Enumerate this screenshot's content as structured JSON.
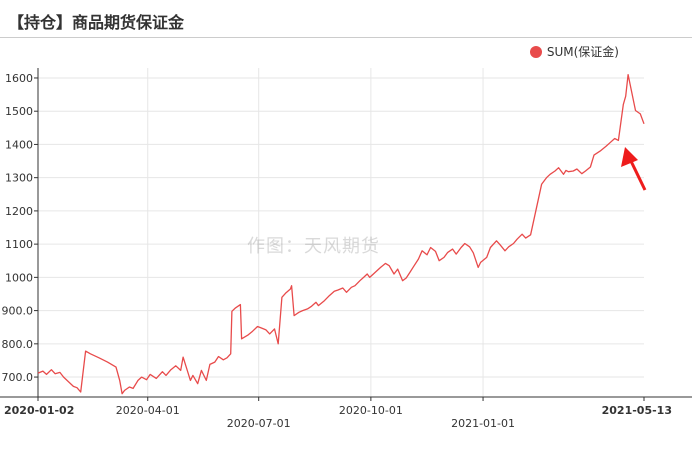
{
  "header": {
    "title": "【持仓】商品期货保证金"
  },
  "watermark": "作图：天风期货",
  "colors": {
    "series": "#e84b4b",
    "arrow": "#ee1c1c",
    "grid": "#e6e6e6",
    "axis": "#333333"
  },
  "chart_data": {
    "type": "line",
    "title": "",
    "xlabel": "",
    "ylabel": "",
    "grid": true,
    "legend_position": "top-right",
    "ylim": [
      640,
      1630
    ],
    "xlim": [
      "2020-01-02",
      "2021-05-13"
    ],
    "y_ticks": [
      {
        "value": 700,
        "label": "700.0"
      },
      {
        "value": 800,
        "label": "800.0"
      },
      {
        "value": 900,
        "label": "900.0"
      },
      {
        "value": 1000,
        "label": "1000"
      },
      {
        "value": 1100,
        "label": "1100"
      },
      {
        "value": 1200,
        "label": "1200"
      },
      {
        "value": 1300,
        "label": "1300"
      },
      {
        "value": 1400,
        "label": "1400"
      },
      {
        "value": 1500,
        "label": "1500"
      },
      {
        "value": 1600,
        "label": "1600"
      }
    ],
    "x_ticks": [
      {
        "date": "2020-01-02",
        "label": "2020-01-02",
        "row": 0,
        "bold": true
      },
      {
        "date": "2020-04-01",
        "label": "2020-04-01",
        "row": 0,
        "bold": false
      },
      {
        "date": "2020-07-01",
        "label": "2020-07-01",
        "row": 1,
        "bold": false
      },
      {
        "date": "2020-10-01",
        "label": "2020-10-01",
        "row": 0,
        "bold": false
      },
      {
        "date": "2021-01-01",
        "label": "2021-01-01",
        "row": 1,
        "bold": false
      },
      {
        "date": "2021-05-13",
        "label": "2021-05-13",
        "row": 0,
        "bold": true
      }
    ],
    "series": [
      {
        "name": "SUM(保证金)",
        "color": "#e84b4b",
        "points": [
          [
            "2020-01-02",
            712
          ],
          [
            "2020-01-06",
            718
          ],
          [
            "2020-01-09",
            708
          ],
          [
            "2020-01-13",
            722
          ],
          [
            "2020-01-16",
            710
          ],
          [
            "2020-01-20",
            714
          ],
          [
            "2020-01-23",
            700
          ],
          [
            "2020-01-31",
            672
          ],
          [
            "2020-02-03",
            668
          ],
          [
            "2020-02-06",
            655
          ],
          [
            "2020-02-10",
            778
          ],
          [
            "2020-02-14",
            770
          ],
          [
            "2020-02-21",
            758
          ],
          [
            "2020-02-28",
            745
          ],
          [
            "2020-03-06",
            730
          ],
          [
            "2020-03-09",
            690
          ],
          [
            "2020-03-11",
            650
          ],
          [
            "2020-03-13",
            660
          ],
          [
            "2020-03-17",
            670
          ],
          [
            "2020-03-20",
            666
          ],
          [
            "2020-03-24",
            690
          ],
          [
            "2020-03-27",
            700
          ],
          [
            "2020-03-31",
            692
          ],
          [
            "2020-04-03",
            708
          ],
          [
            "2020-04-08",
            696
          ],
          [
            "2020-04-13",
            716
          ],
          [
            "2020-04-16",
            705
          ],
          [
            "2020-04-20",
            722
          ],
          [
            "2020-04-24",
            734
          ],
          [
            "2020-04-28",
            720
          ],
          [
            "2020-04-30",
            760
          ],
          [
            "2020-05-06",
            690
          ],
          [
            "2020-05-08",
            705
          ],
          [
            "2020-05-12",
            680
          ],
          [
            "2020-05-15",
            720
          ],
          [
            "2020-05-19",
            690
          ],
          [
            "2020-05-22",
            738
          ],
          [
            "2020-05-26",
            745
          ],
          [
            "2020-05-29",
            762
          ],
          [
            "2020-06-02",
            752
          ],
          [
            "2020-06-05",
            758
          ],
          [
            "2020-06-08",
            770
          ],
          [
            "2020-06-09",
            898
          ],
          [
            "2020-06-12",
            908
          ],
          [
            "2020-06-16",
            918
          ],
          [
            "2020-06-17",
            815
          ],
          [
            "2020-06-22",
            826
          ],
          [
            "2020-06-26",
            838
          ],
          [
            "2020-06-30",
            852
          ],
          [
            "2020-07-03",
            848
          ],
          [
            "2020-07-07",
            842
          ],
          [
            "2020-07-10",
            830
          ],
          [
            "2020-07-14",
            845
          ],
          [
            "2020-07-17",
            800
          ],
          [
            "2020-07-20",
            940
          ],
          [
            "2020-07-23",
            952
          ],
          [
            "2020-07-27",
            965
          ],
          [
            "2020-07-28",
            975
          ],
          [
            "2020-07-30",
            885
          ],
          [
            "2020-08-03",
            895
          ],
          [
            "2020-08-06",
            900
          ],
          [
            "2020-08-10",
            905
          ],
          [
            "2020-08-13",
            912
          ],
          [
            "2020-08-17",
            925
          ],
          [
            "2020-08-19",
            915
          ],
          [
            "2020-08-24",
            930
          ],
          [
            "2020-08-28",
            945
          ],
          [
            "2020-09-01",
            958
          ],
          [
            "2020-09-04",
            962
          ],
          [
            "2020-09-08",
            968
          ],
          [
            "2020-09-11",
            955
          ],
          [
            "2020-09-15",
            970
          ],
          [
            "2020-09-18",
            975
          ],
          [
            "2020-09-22",
            990
          ],
          [
            "2020-09-25",
            1000
          ],
          [
            "2020-09-28",
            1010
          ],
          [
            "2020-09-30",
            1000
          ],
          [
            "2020-10-09",
            1030
          ],
          [
            "2020-10-13",
            1042
          ],
          [
            "2020-10-16",
            1035
          ],
          [
            "2020-10-20",
            1010
          ],
          [
            "2020-10-23",
            1025
          ],
          [
            "2020-10-27",
            990
          ],
          [
            "2020-10-30",
            998
          ],
          [
            "2020-11-02",
            1015
          ],
          [
            "2020-11-05",
            1032
          ],
          [
            "2020-11-09",
            1055
          ],
          [
            "2020-11-12",
            1080
          ],
          [
            "2020-11-16",
            1068
          ],
          [
            "2020-11-19",
            1090
          ],
          [
            "2020-11-23",
            1078
          ],
          [
            "2020-11-26",
            1050
          ],
          [
            "2020-11-30",
            1060
          ],
          [
            "2020-12-03",
            1075
          ],
          [
            "2020-12-07",
            1085
          ],
          [
            "2020-12-10",
            1070
          ],
          [
            "2020-12-14",
            1090
          ],
          [
            "2020-12-17",
            1102
          ],
          [
            "2020-12-21",
            1092
          ],
          [
            "2020-12-24",
            1074
          ],
          [
            "2020-12-28",
            1030
          ],
          [
            "2020-12-30",
            1045
          ],
          [
            "2021-01-04",
            1060
          ],
          [
            "2021-01-07",
            1090
          ],
          [
            "2021-01-12",
            1110
          ],
          [
            "2021-01-15",
            1098
          ],
          [
            "2021-01-19",
            1080
          ],
          [
            "2021-01-22",
            1092
          ],
          [
            "2021-01-26",
            1102
          ],
          [
            "2021-01-29",
            1115
          ],
          [
            "2021-02-02",
            1130
          ],
          [
            "2021-02-05",
            1118
          ],
          [
            "2021-02-09",
            1128
          ],
          [
            "2021-02-18",
            1280
          ],
          [
            "2021-02-22",
            1300
          ],
          [
            "2021-02-25",
            1310
          ],
          [
            "2021-03-01",
            1320
          ],
          [
            "2021-03-04",
            1330
          ],
          [
            "2021-03-08",
            1310
          ],
          [
            "2021-03-10",
            1322
          ],
          [
            "2021-03-12",
            1318
          ],
          [
            "2021-03-16",
            1320
          ],
          [
            "2021-03-19",
            1326
          ],
          [
            "2021-03-23",
            1312
          ],
          [
            "2021-03-26",
            1320
          ],
          [
            "2021-03-30",
            1332
          ],
          [
            "2021-04-02",
            1368
          ],
          [
            "2021-04-07",
            1380
          ],
          [
            "2021-04-12",
            1395
          ],
          [
            "2021-04-15",
            1405
          ],
          [
            "2021-04-19",
            1418
          ],
          [
            "2021-04-22",
            1412
          ],
          [
            "2021-04-26",
            1520
          ],
          [
            "2021-04-28",
            1545
          ],
          [
            "2021-04-30",
            1610
          ],
          [
            "2021-05-06",
            1502
          ],
          [
            "2021-05-10",
            1492
          ],
          [
            "2021-05-13",
            1462
          ]
        ]
      }
    ]
  }
}
